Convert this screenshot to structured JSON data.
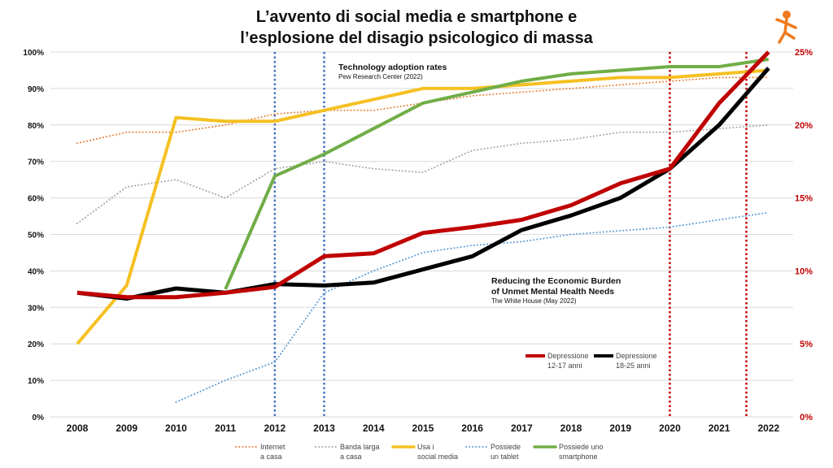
{
  "chart_data": {
    "type": "line",
    "title_lines": [
      "L’avvento di social media e smartphone e",
      "l’esplosione del disagio psicologico di massa"
    ],
    "categories": [
      "2008",
      "2009",
      "2010",
      "2011",
      "2012",
      "2013",
      "2014",
      "2015",
      "2016",
      "2017",
      "2018",
      "2019",
      "2020",
      "2021",
      "2022"
    ],
    "y_left": {
      "min": 0,
      "max": 100,
      "ticks": [
        "0%",
        "10%",
        "20%",
        "30%",
        "40%",
        "50%",
        "60%",
        "70%",
        "80%",
        "90%",
        "100%"
      ]
    },
    "y_right": {
      "min": 0,
      "max": 25,
      "ticks": [
        "0%",
        "5%",
        "10%",
        "15%",
        "20%",
        "25%"
      ],
      "color": "#c00000"
    },
    "grid": true,
    "series": [
      {
        "key": "internet",
        "name_lines": [
          "Internet",
          "a casa"
        ],
        "axis": "left",
        "color": "#e8823a",
        "style": "dotted",
        "width": 2,
        "x": [
          2008,
          2009,
          2010,
          2011,
          2012,
          2013,
          2014,
          2015,
          2016,
          2017,
          2018,
          2019,
          2020,
          2021,
          2022
        ],
        "values": [
          75,
          78,
          78,
          80,
          83,
          84,
          84,
          86,
          88,
          89,
          90,
          91,
          92,
          93,
          93
        ]
      },
      {
        "key": "banda",
        "name_lines": [
          "Banda larga",
          "a casa"
        ],
        "axis": "left",
        "color": "#a6a6a6",
        "style": "dotted",
        "width": 2,
        "x": [
          2008,
          2009,
          2010,
          2011,
          2012,
          2013,
          2014,
          2015,
          2016,
          2017,
          2018,
          2019,
          2020,
          2021,
          2022
        ],
        "values": [
          53,
          63,
          65,
          60,
          68,
          70,
          68,
          67,
          73,
          75,
          76,
          78,
          78,
          79,
          80
        ]
      },
      {
        "key": "social",
        "name_lines": [
          "Usa i",
          "social media"
        ],
        "axis": "left",
        "color": "#f5c022",
        "style": "solid",
        "width": 4,
        "x": [
          2008,
          2009,
          2010,
          2011,
          2012,
          2013,
          2014,
          2015,
          2016,
          2017,
          2018,
          2019,
          2020,
          2021,
          2022
        ],
        "values": [
          20,
          36,
          82,
          81,
          81,
          84,
          87,
          90,
          90,
          91,
          92,
          93,
          93,
          94,
          95
        ]
      },
      {
        "key": "tablet",
        "name_lines": [
          "Possiede",
          "un tablet"
        ],
        "axis": "left",
        "color": "#5b9bd5",
        "style": "dotted",
        "width": 2,
        "x": [
          2010,
          2011,
          2012,
          2013,
          2014,
          2015,
          2016,
          2017,
          2018,
          2019,
          2020,
          2021,
          2022
        ],
        "values": [
          4,
          10,
          15,
          34,
          40,
          45,
          47,
          48,
          50,
          51,
          52,
          54,
          56
        ]
      },
      {
        "key": "smartphone",
        "name_lines": [
          "Possiede uno",
          "smartphone"
        ],
        "axis": "left",
        "color": "#70ad47",
        "style": "solid",
        "width": 4,
        "x": [
          2011,
          2012,
          2013,
          2014,
          2015,
          2016,
          2017,
          2018,
          2019,
          2020,
          2021,
          2022
        ],
        "values": [
          35,
          66,
          72,
          79,
          86,
          89,
          92,
          94,
          95,
          96,
          96,
          98
        ]
      },
      {
        "key": "dep1217",
        "name_lines": [
          "Depressione",
          "12-17 anni"
        ],
        "axis": "right",
        "color": "#c00000",
        "style": "solid",
        "width": 5,
        "x": [
          2008,
          2009,
          2010,
          2011,
          2012,
          2013,
          2014,
          2015,
          2016,
          2017,
          2018,
          2019,
          2020,
          2021,
          2022
        ],
        "values": [
          8.5,
          8.2,
          8.2,
          8.5,
          8.9,
          11.0,
          11.2,
          12.6,
          13.0,
          13.5,
          14.5,
          16.0,
          17.0,
          21.5,
          25.0
        ]
      },
      {
        "key": "dep1825",
        "name_lines": [
          "Depressione",
          "18-25 anni"
        ],
        "axis": "right",
        "color": "#000000",
        "style": "solid",
        "width": 5,
        "x": [
          2008,
          2009,
          2010,
          2011,
          2012,
          2013,
          2014,
          2015,
          2016,
          2017,
          2018,
          2019,
          2020,
          2021,
          2022
        ],
        "values": [
          8.5,
          8.1,
          8.8,
          8.5,
          9.1,
          9.0,
          9.2,
          10.1,
          11.0,
          12.8,
          13.8,
          15.0,
          17.0,
          20.0,
          23.9
        ]
      }
    ],
    "vlines": [
      {
        "x": 2012,
        "color": "#4472c4"
      },
      {
        "x": 2013,
        "color": "#4472c4"
      },
      {
        "x": 2020,
        "color": "#c00000"
      },
      {
        "x": 2021.55,
        "color": "#c00000"
      }
    ],
    "annotations": [
      {
        "key": "tech",
        "lines": [
          "Technology adoption rates",
          "Pew Research Center (2022)"
        ]
      },
      {
        "key": "wh",
        "lines": [
          "Reducing the Economic Burden",
          "of Unmet Mental Health Needs",
          "The White House (May 2022)"
        ]
      }
    ],
    "legend_bottom": [
      "internet",
      "banda",
      "social",
      "tablet",
      "smartphone"
    ],
    "legend_inset": [
      "dep1217",
      "dep1825"
    ]
  },
  "logo": {
    "name": "person-logo",
    "color": "#f07a1e"
  }
}
